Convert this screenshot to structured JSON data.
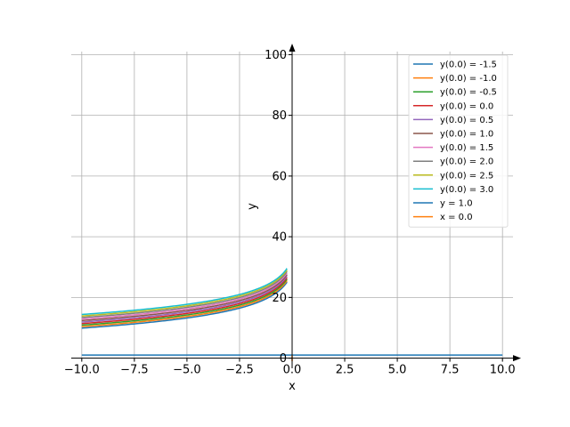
{
  "chart_data": {
    "type": "line",
    "title": "",
    "xlabel": "x",
    "ylabel": "y",
    "xlim": [
      -10.5,
      10.5
    ],
    "ylim": [
      -1,
      101
    ],
    "xticks": [
      -10,
      -7.5,
      -5,
      -2.5,
      0,
      2.5,
      5,
      7.5,
      10
    ],
    "xtick_labels": [
      "−10.0",
      "−7.5",
      "−5.0",
      "−2.5",
      "0.0",
      "2.5",
      "5.0",
      "7.5",
      "10.0"
    ],
    "yticks": [
      0,
      20,
      40,
      60,
      80,
      100
    ],
    "ytick_labels": [
      "0",
      "20",
      "40",
      "60",
      "80",
      "100"
    ],
    "grid": true,
    "legend_position": "top-right",
    "curve_model": "y = c - 5*ln(0.0025 - x/100)",
    "curve_x_range": [
      -10,
      -0.25
    ],
    "series": [
      {
        "name": "y(0.0) = -1.5",
        "color": "#1f77b4",
        "c": -1.5
      },
      {
        "name": "y(0.0) = -1.0",
        "color": "#ff7f0e",
        "c": -1.0
      },
      {
        "name": "y(0.0) = -0.5",
        "color": "#2ca02c",
        "c": -0.5
      },
      {
        "name": "y(0.0) = 0.0",
        "color": "#d62728",
        "c": 0.0
      },
      {
        "name": "y(0.0) = 0.5",
        "color": "#9467bd",
        "c": 0.5
      },
      {
        "name": "y(0.0) = 1.0",
        "color": "#8c564b",
        "c": 1.0
      },
      {
        "name": "y(0.0) = 1.5",
        "color": "#e377c2",
        "c": 1.5
      },
      {
        "name": "y(0.0) = 2.0",
        "color": "#7f7f7f",
        "c": 2.0
      },
      {
        "name": "y(0.0) = 2.5",
        "color": "#bcbd22",
        "c": 2.5
      },
      {
        "name": "y(0.0) = 3.0",
        "color": "#17becf",
        "c": 3.0
      }
    ],
    "reference_lines": [
      {
        "name": "y = 1.0",
        "color": "#1f77b4",
        "orientation": "horizontal",
        "value": 1.0,
        "span": [
          -10,
          10
        ]
      },
      {
        "name": "x = 0.0",
        "color": "#ff7f0e",
        "orientation": "vertical",
        "value": 0.0,
        "span": [
          -1,
          1
        ]
      }
    ]
  }
}
